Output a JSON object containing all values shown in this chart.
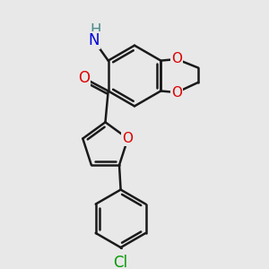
{
  "bg_color": "#e8e8e8",
  "atom_colors": {
    "C": "#1a1a1a",
    "N": "#0000dd",
    "O": "#dd0000",
    "Cl": "#009900",
    "H": "#4a8a8a"
  },
  "line_color": "#1a1a1a",
  "line_width": 1.8,
  "font_size_main": 11,
  "font_size_small": 10
}
